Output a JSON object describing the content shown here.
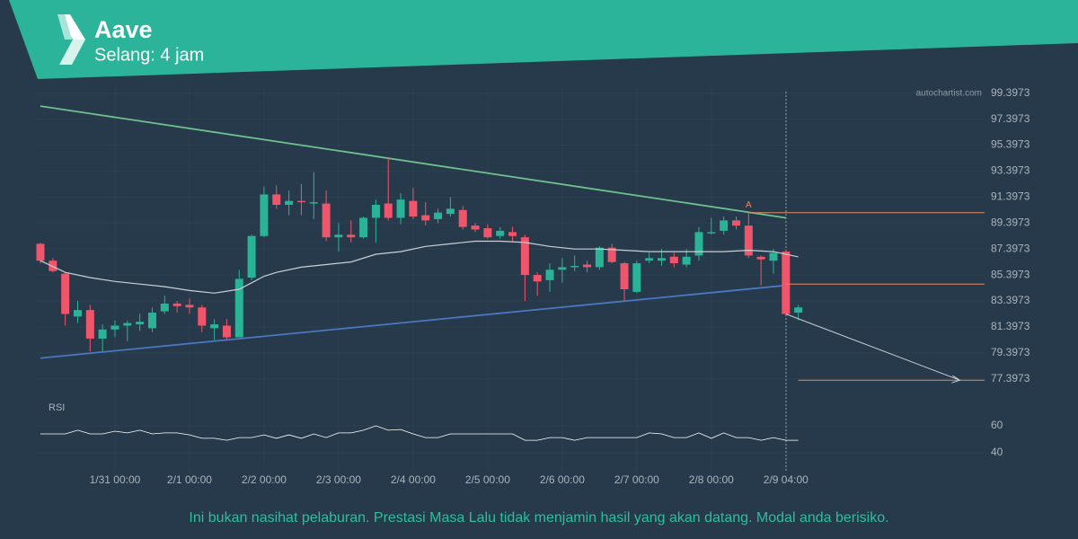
{
  "chart_data": {
    "type": "candlestick",
    "title": "Aave",
    "subtitle": "Selang: 4 jam",
    "watermark": "autochartist.com",
    "disclaimer": "Ini bukan nasihat pelaburan. Prestasi Masa Lalu tidak menjamin hasil yang akan datang. Modal anda berisiko.",
    "categories": [
      null,
      null,
      null,
      null,
      null,
      null,
      "1/31 00:00",
      null,
      null,
      null,
      null,
      null,
      "2/1 00:00",
      null,
      null,
      null,
      null,
      null,
      "2/2 00:00",
      null,
      null,
      null,
      null,
      null,
      "2/3 00:00",
      null,
      null,
      null,
      null,
      null,
      "2/4 00:00",
      null,
      null,
      null,
      null,
      null,
      "2/5 00:00",
      null,
      null,
      null,
      null,
      null,
      "2/6 00:00",
      null,
      null,
      null,
      null,
      null,
      "2/7 00:00",
      null,
      null,
      null,
      null,
      null,
      "2/8 00:00",
      null,
      null,
      null,
      null,
      null,
      "2/9 04:00",
      null
    ],
    "open": [
      87.8,
      86.5,
      85.5,
      82.2,
      82.7,
      80.5,
      81.2,
      81.5,
      81.6,
      81.3,
      82.6,
      83.2,
      83.1,
      82.9,
      81.3,
      81.5,
      80.6,
      85.2,
      88.4,
      91.6,
      90.8,
      91.1,
      90.9,
      90.9,
      88.3,
      88.5,
      88.3,
      89.8,
      90.9,
      89.8,
      91.1,
      90.0,
      89.7,
      90.1,
      90.4,
      89.2,
      89.0,
      88.4,
      88.7,
      88.3,
      85.4,
      85.0,
      85.8,
      86.0,
      86.2,
      86.0,
      87.5,
      86.3,
      84.1,
      86.5,
      86.5,
      86.8,
      86.2,
      86.9,
      88.6,
      88.8,
      89.6,
      89.2,
      86.8,
      86.5,
      87.2,
      82.5
    ],
    "high": [
      87.9,
      86.7,
      85.6,
      83.4,
      83.1,
      81.6,
      81.9,
      81.9,
      82.4,
      82.9,
      83.8,
      83.4,
      83.6,
      83.1,
      82.0,
      82.0,
      85.8,
      88.5,
      92.2,
      92.3,
      91.9,
      92.4,
      93.3,
      91.9,
      89.4,
      89.6,
      89.9,
      91.2,
      94.4,
      91.7,
      92.1,
      91.0,
      90.5,
      91.4,
      90.7,
      89.4,
      89.3,
      89.1,
      89.1,
      88.5,
      85.6,
      86.3,
      86.7,
      86.9,
      86.5,
      87.6,
      87.8,
      86.4,
      86.5,
      87.1,
      87.4,
      87.1,
      87.4,
      89.1,
      89.8,
      89.9,
      89.9,
      90.2,
      86.9,
      87.4,
      87.3,
      83.1
    ],
    "low": [
      86.3,
      85.6,
      81.5,
      81.7,
      79.5,
      79.5,
      80.6,
      80.3,
      81.1,
      81.0,
      82.4,
      82.5,
      82.4,
      81.0,
      80.4,
      80.4,
      80.6,
      85.0,
      88.3,
      90.5,
      90.0,
      90.0,
      89.7,
      88.0,
      87.2,
      87.9,
      88.2,
      87.9,
      89.6,
      89.3,
      89.7,
      89.2,
      89.4,
      89.9,
      88.9,
      88.7,
      88.2,
      88.2,
      88.0,
      83.4,
      83.8,
      84.1,
      84.8,
      85.7,
      85.6,
      85.8,
      86.3,
      83.4,
      84.0,
      86.3,
      86.1,
      86.0,
      86.0,
      86.5,
      88.5,
      88.5,
      88.9,
      86.7,
      84.6,
      85.5,
      82.3,
      81.9
    ],
    "close": [
      86.5,
      85.7,
      82.4,
      82.7,
      80.5,
      81.2,
      81.5,
      81.7,
      81.8,
      82.5,
      83.2,
      83.0,
      82.9,
      81.5,
      81.6,
      80.6,
      85.1,
      88.4,
      91.6,
      90.8,
      91.1,
      91.0,
      91.0,
      88.3,
      88.5,
      88.3,
      89.8,
      90.8,
      89.8,
      91.2,
      89.9,
      89.6,
      90.2,
      90.5,
      89.1,
      88.9,
      88.3,
      88.8,
      88.4,
      85.4,
      84.9,
      85.8,
      86.0,
      86.1,
      86.0,
      87.5,
      86.4,
      84.3,
      86.3,
      86.7,
      86.7,
      86.3,
      86.8,
      88.7,
      88.7,
      89.6,
      89.2,
      86.9,
      86.6,
      87.1,
      82.4,
      82.9
    ],
    "up_color": "#2bb398",
    "down_color": "#f0566b",
    "ylim": [
      76,
      100
    ],
    "yticks": [
      99.3973,
      97.3973,
      95.3973,
      93.3973,
      91.3973,
      89.3973,
      87.3973,
      85.3973,
      83.3973,
      81.3973,
      79.3973,
      77.3973
    ],
    "grid": true,
    "moving_average": {
      "color": "#c9d0d6",
      "x": [
        0,
        2,
        4,
        6,
        8,
        10,
        12,
        14,
        16,
        17,
        18,
        19,
        21,
        23,
        25,
        27,
        29,
        31,
        33,
        35,
        37,
        39,
        41,
        43,
        45,
        47,
        49,
        51,
        53,
        55,
        57,
        59,
        61
      ],
      "values": [
        86.5,
        85.6,
        85.2,
        84.9,
        84.7,
        84.5,
        84.2,
        84.0,
        84.3,
        84.8,
        85.3,
        85.6,
        86.0,
        86.2,
        86.4,
        87.0,
        87.2,
        87.6,
        87.8,
        88.0,
        88.0,
        87.9,
        87.6,
        87.4,
        87.4,
        87.3,
        87.2,
        87.2,
        87.2,
        87.2,
        87.3,
        87.2,
        86.8
      ]
    },
    "trendlines": [
      {
        "color": "#6fbf8f",
        "x": [
          0,
          60
        ],
        "values": [
          98.4,
          89.8
        ]
      },
      {
        "color": "#4a78c0",
        "x": [
          0,
          60
        ],
        "values": [
          79.0,
          84.6
        ]
      }
    ],
    "levels": [
      {
        "color": "#e58a5c",
        "x": [
          57,
          76
        ],
        "value": 90.2
      },
      {
        "color": "#e58a5c",
        "x": [
          60,
          76
        ],
        "value": 84.7
      },
      {
        "color": "#e58a5c",
        "x": [
          61,
          76
        ],
        "value": 77.3
      }
    ],
    "projection": {
      "color": "#c9d0d6",
      "x": [
        60,
        74
      ],
      "values": [
        82.4,
        77.3
      ]
    },
    "annotation": {
      "text": "A",
      "x": 57,
      "value": 90.5,
      "color": "#e58a5c"
    },
    "rsi": {
      "label": "RSI",
      "color": "#ffffff",
      "ylim": [
        30,
        70
      ],
      "yticks": [
        60,
        40
      ],
      "values": [
        54,
        54,
        54,
        56.7,
        54,
        54,
        56,
        54.7,
        56.7,
        54,
        54.7,
        54.7,
        53.3,
        50.7,
        50.7,
        49.3,
        51.3,
        51.3,
        53.3,
        50.7,
        53.3,
        50.7,
        54,
        51.3,
        54.7,
        54.7,
        56.7,
        60,
        56.7,
        57.3,
        54,
        51.3,
        51.3,
        54,
        54,
        54,
        54,
        54,
        54,
        49.3,
        49.3,
        51.3,
        51.3,
        49.3,
        51.3,
        51.3,
        51.3,
        51.3,
        51.3,
        54.7,
        54,
        51.3,
        51.3,
        54.7,
        50.7,
        54.7,
        51.3,
        51.3,
        49.3,
        51.3,
        49.3,
        49.3
      ]
    }
  }
}
